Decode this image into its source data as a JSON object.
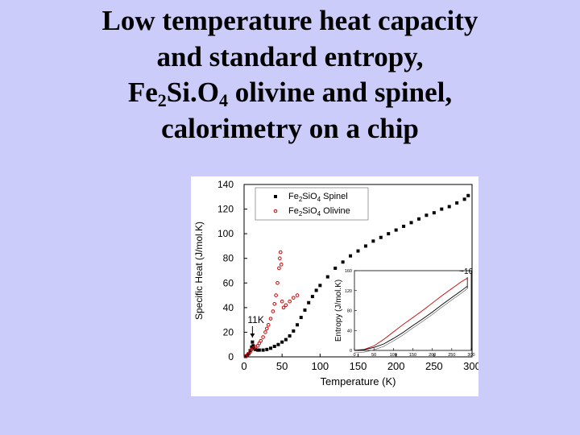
{
  "slide": {
    "title_line1": "Low temperature heat capacity",
    "title_line2": "and standard entropy,",
    "title_line3_parts": [
      "Fe",
      "2",
      "Si.O",
      "4",
      " olivine and spinel,"
    ],
    "title_line4": "calorimetry on a chip"
  },
  "colors": {
    "background": "#ccccfa",
    "spinel": "#000000",
    "olivine": "#cc0000",
    "panel": "#ffffff"
  },
  "chart_data": [
    {
      "type": "scatter",
      "title": "",
      "xlabel": "Temperature (K)",
      "ylabel": "Specific Heat (J/mol.K)",
      "xlim": [
        0,
        300
      ],
      "ylim": [
        0,
        140
      ],
      "xticks": [
        0,
        50,
        100,
        150,
        200,
        250,
        300
      ],
      "yticks": [
        0,
        20,
        40,
        60,
        80,
        100,
        120,
        140
      ],
      "legend": {
        "position": "top-right",
        "entries": [
          {
            "series": "spinel",
            "parts": [
              "Fe",
              "2",
              "SiO",
              "4",
              " Spinel"
            ]
          },
          {
            "series": "olivine",
            "parts": [
              "Fe",
              "2",
              "SiO",
              "4",
              " Olivine"
            ]
          }
        ]
      },
      "annotations": [
        {
          "text": "11K",
          "x": 11,
          "y": 10,
          "arrow": "down"
        }
      ],
      "series": [
        {
          "id": "spinel",
          "marker": "square",
          "color": "#000000",
          "points": [
            [
              2,
              0.3
            ],
            [
              4,
              1
            ],
            [
              6,
              2.5
            ],
            [
              8,
              5
            ],
            [
              10,
              8
            ],
            [
              11,
              12
            ],
            [
              12,
              9
            ],
            [
              13,
              7
            ],
            [
              15,
              6
            ],
            [
              18,
              5.5
            ],
            [
              20,
              5.5
            ],
            [
              25,
              5.5
            ],
            [
              30,
              6
            ],
            [
              35,
              7
            ],
            [
              40,
              8.5
            ],
            [
              45,
              10
            ],
            [
              50,
              12
            ],
            [
              55,
              14
            ],
            [
              60,
              17
            ],
            [
              65,
              21
            ],
            [
              70,
              26
            ],
            [
              75,
              32
            ],
            [
              80,
              38
            ],
            [
              85,
              44
            ],
            [
              90,
              49
            ],
            [
              95,
              54
            ],
            [
              100,
              58
            ],
            [
              110,
              65
            ],
            [
              120,
              72
            ],
            [
              130,
              77
            ],
            [
              140,
              82
            ],
            [
              150,
              86
            ],
            [
              160,
              90
            ],
            [
              170,
              94
            ],
            [
              180,
              97
            ],
            [
              190,
              100
            ],
            [
              200,
              103
            ],
            [
              210,
              106
            ],
            [
              220,
              109
            ],
            [
              230,
              112
            ],
            [
              240,
              115
            ],
            [
              250,
              117
            ],
            [
              260,
              120
            ],
            [
              270,
              122
            ],
            [
              280,
              125
            ],
            [
              290,
              128
            ],
            [
              295,
              131
            ]
          ]
        },
        {
          "id": "olivine",
          "marker": "circle",
          "color": "#cc0000",
          "points": [
            [
              2,
              0.5
            ],
            [
              5,
              2
            ],
            [
              8,
              4
            ],
            [
              10,
              6
            ],
            [
              12,
              7
            ],
            [
              15,
              8
            ],
            [
              18,
              9
            ],
            [
              20,
              11
            ],
            [
              22,
              13
            ],
            [
              25,
              16
            ],
            [
              28,
              20
            ],
            [
              30,
              23
            ],
            [
              32,
              26
            ],
            [
              35,
              31
            ],
            [
              38,
              37
            ],
            [
              40,
              43
            ],
            [
              42,
              50
            ],
            [
              44,
              60
            ],
            [
              46,
              72
            ],
            [
              47,
              80
            ],
            [
              48,
              85
            ],
            [
              49,
              75
            ],
            [
              50,
              45
            ],
            [
              52,
              40
            ],
            [
              55,
              42
            ],
            [
              60,
              45
            ],
            [
              65,
              48
            ],
            [
              70,
              50
            ]
          ]
        }
      ],
      "inset": {
        "type": "line",
        "title": "",
        "ylabel": "Entropy (J/mol.K)",
        "xlim": [
          0,
          300
        ],
        "ylim": [
          0,
          160
        ],
        "xticks": [
          0,
          50,
          100,
          150,
          200,
          250,
          300
        ],
        "yticks": [
          0,
          40,
          80,
          120,
          160
        ],
        "annotations": [
          {
            "text": "~16",
            "x": 290,
            "arrow": "up-down"
          }
        ],
        "series": [
          {
            "id": "olivine",
            "color": "#cc0000",
            "x": [
              0,
              25,
              50,
              75,
              100,
              125,
              150,
              175,
              200,
              225,
              250,
              275,
              290
            ],
            "y": [
              0,
              2,
              9,
              22,
              37,
              52,
              66,
              80,
              95,
              110,
              124,
              138,
              145
            ]
          },
          {
            "id": "spinel",
            "color": "#000000",
            "x": [
              0,
              25,
              50,
              75,
              100,
              125,
              150,
              175,
              200,
              225,
              250,
              275,
              290
            ],
            "y": [
              0,
              1.5,
              6,
              13,
              24,
              36,
              50,
              63,
              77,
              92,
              106,
              120,
              129
            ]
          }
        ]
      }
    }
  ]
}
